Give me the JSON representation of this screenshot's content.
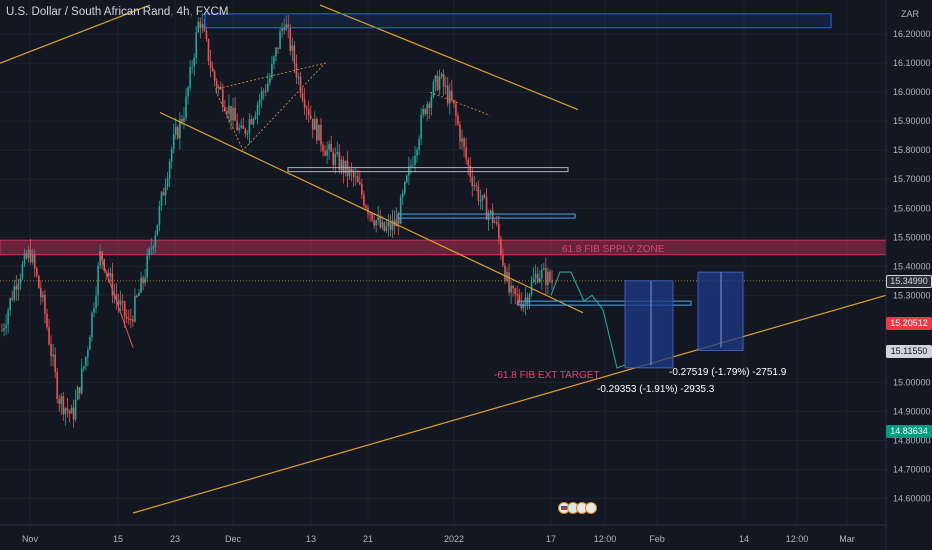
{
  "header": {
    "symbol_name": "U.S. Dollar / South African Rand",
    "interval": "4h",
    "exchange": "FXCM"
  },
  "currency_label": "ZAR",
  "colors": {
    "background": "#131722",
    "up": "#26a69a",
    "down": "#ef5350",
    "trendline": "#e0a030",
    "zone_fill": "#d1305a",
    "box_blue": "#2962ff",
    "projection_fill": "#1e3a8a",
    "projection_arrow": "#26a69a"
  },
  "price_axis": {
    "ticks": [
      "16.20000",
      "16.10000",
      "16.00000",
      "15.90000",
      "15.80000",
      "15.70000",
      "15.60000",
      "15.50000",
      "15.40000",
      "15.30000",
      "15.00000",
      "14.90000",
      "14.80000",
      "14.70000",
      "14.60000"
    ],
    "tick_values": [
      16.2,
      16.1,
      16.0,
      15.9,
      15.8,
      15.7,
      15.6,
      15.5,
      15.4,
      15.3,
      15.0,
      14.9,
      14.8,
      14.7,
      14.6
    ]
  },
  "time_axis": {
    "labels": [
      "Nov",
      "15",
      "23",
      "Dec",
      "13",
      "21",
      "2022",
      "17",
      "12:00",
      "Feb",
      "14",
      "12:00",
      "Mar"
    ]
  },
  "price_tags": [
    {
      "text": "15.34990",
      "value": 15.3499,
      "kind": "last"
    },
    {
      "text": "15.20512",
      "value": 15.20512,
      "kind": "red"
    },
    {
      "text": "15.11550",
      "value": 15.1155,
      "kind": "gray"
    },
    {
      "text": "14.83634",
      "value": 14.83634,
      "kind": "green"
    }
  ],
  "annotations": {
    "supply_zone": "61.8 FIB SPPLY ZONE",
    "ext_target": "-61.8 FIB EXT TARGET",
    "measure_1": "-0.27519 (-1.79%) -2751.9",
    "measure_2": "-0.29353 (-1.91%) -2935.3"
  },
  "chart_data": {
    "type": "candlestick",
    "title": "U.S. Dollar / South African Rand, 4h, FXCM",
    "ylim": [
      14.55,
      16.29
    ],
    "x_labels": [
      "Nov",
      "15",
      "23",
      "Dec",
      "13",
      "21",
      "2022",
      "17",
      "12:00",
      "Feb",
      "14",
      "12:00",
      "Mar"
    ],
    "price_series_approx": [
      15.18,
      15.35,
      15.45,
      15.25,
      14.95,
      14.88,
      15.1,
      15.45,
      15.3,
      15.2,
      15.35,
      15.55,
      15.8,
      15.95,
      16.26,
      16.05,
      15.95,
      15.85,
      15.95,
      16.05,
      16.25,
      16.05,
      15.9,
      15.8,
      15.75,
      15.7,
      15.6,
      15.52,
      15.55,
      15.75,
      15.95,
      16.05,
      15.95,
      15.75,
      15.62,
      15.55,
      15.3,
      15.28,
      15.38,
      15.35
    ],
    "last_price": 15.3499,
    "supply_zone": {
      "label": "61.8 FIB SPPLY ZONE",
      "from": 15.44,
      "to": 15.49
    },
    "target_label": "-61.8 FIB EXT TARGET",
    "measurements": [
      "-0.27519 (-1.79%) -2751.9",
      "-0.29353 (-1.91%) -2935.3"
    ]
  }
}
